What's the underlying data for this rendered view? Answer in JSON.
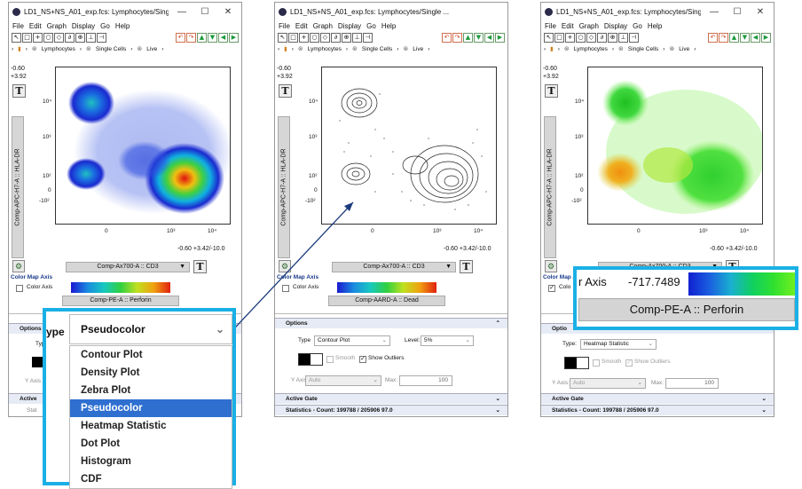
{
  "window_title": "LD1_NS+NS_A01_exp.fcs: Lymphocytes/Single ...",
  "window_controls": {
    "minimize": "—",
    "maximize": "☐",
    "close": "✕"
  },
  "menu": [
    "File",
    "Edit",
    "Graph",
    "Display",
    "Go",
    "Help"
  ],
  "breadcrumb": [
    "Lymphocytes",
    "Single Cells",
    "Live"
  ],
  "y_axis": {
    "label": "Comp-APC-H7-A :: HLA-DR",
    "range_top": "-0.60",
    "range_bottom": "+3.92",
    "ticks": [
      "10⁴",
      "10³",
      "10²",
      "0",
      "-10²"
    ]
  },
  "x_axis": {
    "label": "Comp-Ax700-A :: CD3",
    "range": "-0.60 +3.42/-10.0",
    "ticks": [
      "0",
      "10³",
      "10⁴"
    ]
  },
  "t_button": "T",
  "color_map": {
    "title": "Color Map Axis",
    "checkbox_label": "Color Axis"
  },
  "panels": [
    {
      "color_param": "Comp-PE-A :: Perforin"
    },
    {
      "color_param": "Comp-AARD-A :: Dead",
      "options": {
        "title": "Options",
        "type_label": "Type",
        "type_value": "Contour Plot",
        "level_label": "Level:",
        "level_value": "5%",
        "smooth_label": "Smooth",
        "show_outliers_label": "Show Outliers",
        "y_axis_label": "Y Axis:",
        "y_axis_value": "Auto",
        "max_label": "Max:",
        "max_value": "100"
      },
      "active_gate": "Active Gate",
      "statistics": "Statistics - Count: 199788 / 205906    97.0"
    },
    {
      "color_param": "Comp-PE-A :: Perforin",
      "options": {
        "title": "Options",
        "type_label": "Type:",
        "type_value": "Heatmap Statistic",
        "smooth_label": "Smooth",
        "show_outliers_label": "Show Outliers",
        "y_axis_label": "Y Axis:",
        "y_axis_value": "Auto",
        "max_label": "Max:",
        "max_value": "100"
      },
      "active_gate": "Active Gate",
      "statistics": "Statistics - Count: 199788 / 205906    97.0"
    }
  ],
  "left_options_title": "Options",
  "left_type_label": "Typ",
  "left_y_axis": "Y Axis",
  "left_active": "Active",
  "left_bottom_fragment": "Stat",
  "dropdown_callout": {
    "type_label": "ype",
    "selected": "Pseudocolor",
    "options": [
      "Contour Plot",
      "Density Plot",
      "Zebra Plot",
      "Pseudocolor",
      "Heatmap Statistic",
      "Dot Plot",
      "Histogram",
      "CDF"
    ],
    "selected_index": 3
  },
  "color_callout": {
    "label": "r Axis",
    "value": "-717.7489",
    "param": "Comp-PE-A :: Perforin"
  },
  "options_partial": "Optio",
  "color_partial": "Colo"
}
